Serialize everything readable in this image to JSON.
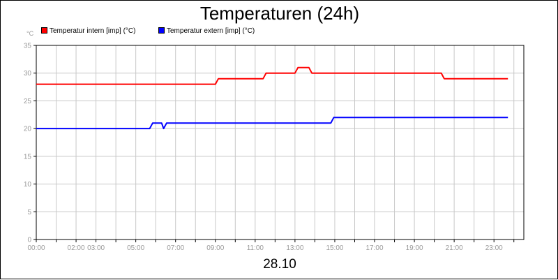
{
  "chart_data": {
    "type": "line",
    "title": "Temperaturen (24h)",
    "ylabel": "°C",
    "xlabel": "28.10",
    "ylim": [
      0,
      35
    ],
    "yticks": [
      0,
      5,
      10,
      15,
      20,
      25,
      30,
      35
    ],
    "xlim": [
      0,
      24.5
    ],
    "xticks": [
      {
        "label": "00:00",
        "hour": 0
      },
      {
        "label": "02:00",
        "hour": 2
      },
      {
        "label": "03:00",
        "hour": 3
      },
      {
        "label": "05:00",
        "hour": 5
      },
      {
        "label": "07:00",
        "hour": 7
      },
      {
        "label": "09:00",
        "hour": 9
      },
      {
        "label": "11:00",
        "hour": 11
      },
      {
        "label": "13:00",
        "hour": 13
      },
      {
        "label": "15:00",
        "hour": 15
      },
      {
        "label": "17:00",
        "hour": 17
      },
      {
        "label": "19:00",
        "hour": 19
      },
      {
        "label": "21:00",
        "hour": 21
      },
      {
        "label": "23:00",
        "hour": 23
      }
    ],
    "grid": true,
    "legend_position": "top-left",
    "series": [
      {
        "name": "Temperatur intern [imp] (°C)",
        "color": "#ff0000",
        "points": [
          [
            0.0,
            28
          ],
          [
            9.0,
            28
          ],
          [
            9.15,
            29
          ],
          [
            11.4,
            29
          ],
          [
            11.55,
            30
          ],
          [
            13.0,
            30
          ],
          [
            13.15,
            31
          ],
          [
            13.7,
            31
          ],
          [
            13.85,
            30
          ],
          [
            20.35,
            30
          ],
          [
            20.5,
            29
          ],
          [
            23.7,
            29
          ]
        ]
      },
      {
        "name": "Temperatur extern [imp] (°C)",
        "color": "#0000ff",
        "points": [
          [
            0.0,
            20
          ],
          [
            5.7,
            20
          ],
          [
            5.85,
            21
          ],
          [
            6.3,
            21
          ],
          [
            6.4,
            20
          ],
          [
            6.55,
            21
          ],
          [
            14.8,
            21
          ],
          [
            14.95,
            22
          ],
          [
            23.7,
            22
          ]
        ]
      }
    ]
  }
}
